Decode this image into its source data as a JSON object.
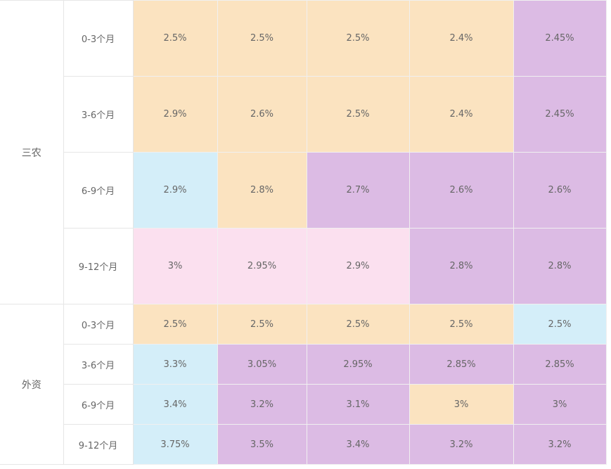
{
  "colors": {
    "peach": "#fbe3c0",
    "purple": "#dcbbe4",
    "blue": "#d4eef9",
    "pink": "#fbe0ef"
  },
  "groups": [
    {
      "label": "三农",
      "rows": [
        {
          "period": "0-3个月",
          "cells": [
            {
              "v": "2.5%",
              "c": "peach"
            },
            {
              "v": "2.5%",
              "c": "peach"
            },
            {
              "v": "2.5%",
              "c": "peach"
            },
            {
              "v": "2.4%",
              "c": "peach"
            },
            {
              "v": "2.45%",
              "c": "purple"
            }
          ]
        },
        {
          "period": "3-6个月",
          "cells": [
            {
              "v": "2.9%",
              "c": "peach"
            },
            {
              "v": "2.6%",
              "c": "peach"
            },
            {
              "v": "2.5%",
              "c": "peach"
            },
            {
              "v": "2.4%",
              "c": "peach"
            },
            {
              "v": "2.45%",
              "c": "purple"
            }
          ]
        },
        {
          "period": "6-9个月",
          "cells": [
            {
              "v": "2.9%",
              "c": "blue"
            },
            {
              "v": "2.8%",
              "c": "peach"
            },
            {
              "v": "2.7%",
              "c": "purple"
            },
            {
              "v": "2.6%",
              "c": "purple"
            },
            {
              "v": "2.6%",
              "c": "purple"
            }
          ]
        },
        {
          "period": "9-12个月",
          "cells": [
            {
              "v": "3%",
              "c": "pink"
            },
            {
              "v": "2.95%",
              "c": "pink"
            },
            {
              "v": "2.9%",
              "c": "pink"
            },
            {
              "v": "2.8%",
              "c": "purple"
            },
            {
              "v": "2.8%",
              "c": "purple"
            }
          ]
        }
      ]
    },
    {
      "label": "外资",
      "rows": [
        {
          "period": "0-3个月",
          "cells": [
            {
              "v": "2.5%",
              "c": "peach"
            },
            {
              "v": "2.5%",
              "c": "peach"
            },
            {
              "v": "2.5%",
              "c": "peach"
            },
            {
              "v": "2.5%",
              "c": "peach"
            },
            {
              "v": "2.5%",
              "c": "blue"
            }
          ]
        },
        {
          "period": "3-6个月",
          "cells": [
            {
              "v": "3.3%",
              "c": "blue"
            },
            {
              "v": "3.05%",
              "c": "purple"
            },
            {
              "v": "2.95%",
              "c": "purple"
            },
            {
              "v": "2.85%",
              "c": "purple"
            },
            {
              "v": "2.85%",
              "c": "purple"
            }
          ]
        },
        {
          "period": "6-9个月",
          "cells": [
            {
              "v": "3.4%",
              "c": "blue"
            },
            {
              "v": "3.2%",
              "c": "purple"
            },
            {
              "v": "3.1%",
              "c": "purple"
            },
            {
              "v": "3%",
              "c": "peach"
            },
            {
              "v": "3%",
              "c": "purple"
            }
          ]
        },
        {
          "period": "9-12个月",
          "cells": [
            {
              "v": "3.75%",
              "c": "blue"
            },
            {
              "v": "3.5%",
              "c": "purple"
            },
            {
              "v": "3.4%",
              "c": "purple"
            },
            {
              "v": "3.2%",
              "c": "purple"
            },
            {
              "v": "3.2%",
              "c": "purple"
            }
          ]
        }
      ]
    }
  ]
}
